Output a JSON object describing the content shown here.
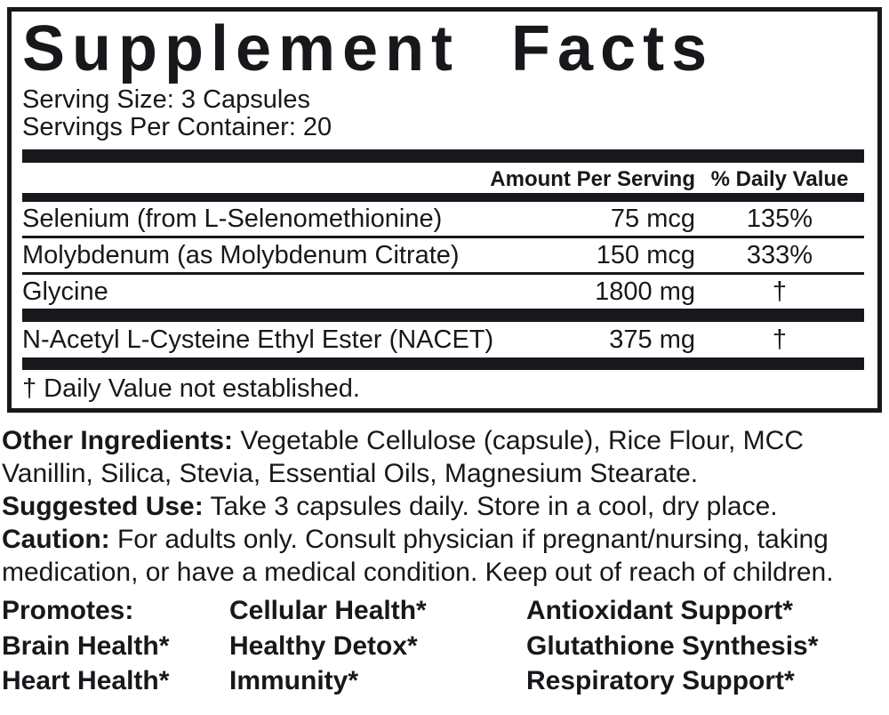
{
  "panel": {
    "title": "Supplement Facts",
    "serving_size": "Serving Size: 3 Capsules",
    "servings_per_container": "Servings Per Container: 20",
    "columns": {
      "amount": "Amount Per Serving",
      "daily_value": "% Daily Value"
    },
    "rows": [
      {
        "name": "Selenium (from L-Selenomethionine)",
        "amount": "75 mcg",
        "daily_value": "135%"
      },
      {
        "name": "Molybdenum (as Molybdenum Citrate)",
        "amount": "150 mcg",
        "daily_value": "333%"
      },
      {
        "name": "Glycine",
        "amount": "1800 mg",
        "daily_value": "†"
      },
      {
        "name": "N-Acetyl L-Cysteine Ethyl Ester (NACET)",
        "amount": "375 mg",
        "daily_value": "†"
      }
    ],
    "footnote": "† Daily Value not established."
  },
  "info": {
    "sections": [
      {
        "label": "Other Ingredients:",
        "text": "Vegetable Cellulose (capsule), Rice Flour, MCC Vanillin, Silica, Stevia, Essential Oils, Magnesium Stearate."
      },
      {
        "label": "Suggested Use:",
        "text": "Take 3 capsules daily. Store in a cool, dry place."
      },
      {
        "label": "Caution:",
        "text": "For adults only. Consult physician if pregnant/nursing, taking medication, or have a medical condition. Keep out of reach of children."
      }
    ]
  },
  "promotes": {
    "rows": [
      [
        "Promotes:",
        "Cellular Health*",
        "Antioxidant Support*"
      ],
      [
        "Brain Health*",
        "Healthy Detox*",
        "Glutathione Synthesis*"
      ],
      [
        "Heart Health*",
        "Immunity*",
        "Respiratory Support*"
      ]
    ]
  },
  "colors": {
    "ink": "#19171b",
    "background": "#ffffff"
  }
}
